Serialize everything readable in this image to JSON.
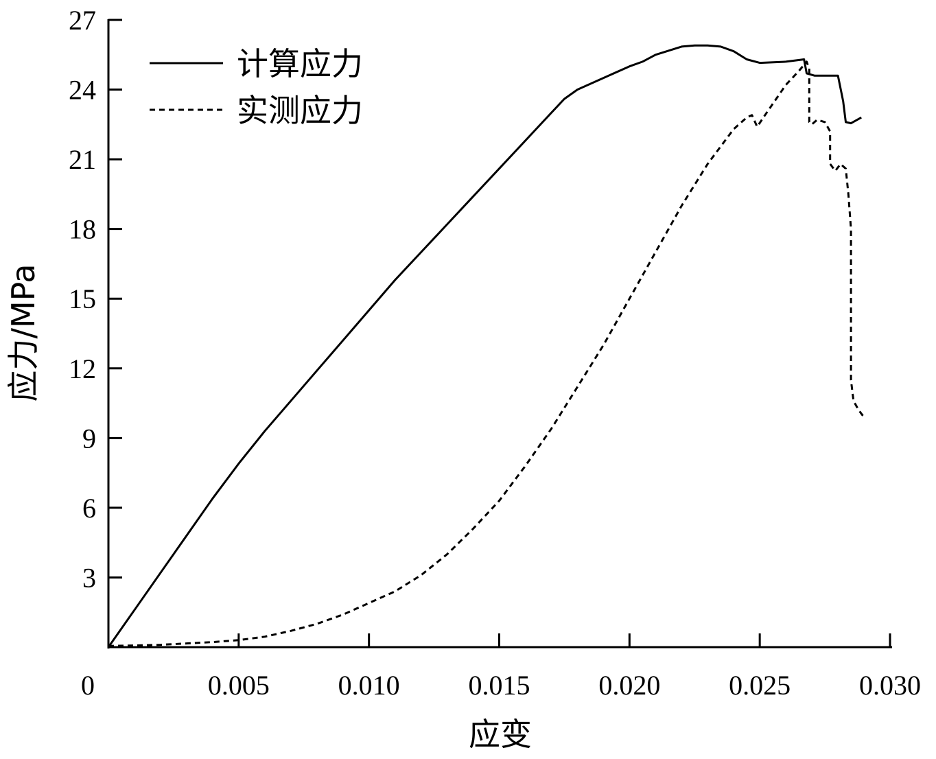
{
  "chart_data": {
    "type": "line",
    "title": "",
    "xlabel": "应变",
    "ylabel": "应力/MPa",
    "xlim": [
      0,
      0.03
    ],
    "ylim": [
      0,
      27
    ],
    "x_ticks": [
      {
        "value": 0,
        "label": "0"
      },
      {
        "value": 0.005,
        "label": "0.005"
      },
      {
        "value": 0.01,
        "label": "0.010"
      },
      {
        "value": 0.015,
        "label": "0.015"
      },
      {
        "value": 0.02,
        "label": "0.020"
      },
      {
        "value": 0.025,
        "label": "0.025"
      },
      {
        "value": 0.03,
        "label": "0.030"
      }
    ],
    "y_ticks": [
      {
        "value": 3,
        "label": "3"
      },
      {
        "value": 6,
        "label": "6"
      },
      {
        "value": 9,
        "label": "9"
      },
      {
        "value": 12,
        "label": "12"
      },
      {
        "value": 15,
        "label": "15"
      },
      {
        "value": 18,
        "label": "18"
      },
      {
        "value": 21,
        "label": "21"
      },
      {
        "value": 24,
        "label": "24"
      },
      {
        "value": 27,
        "label": "27"
      }
    ],
    "grid": false,
    "legend_position": "top-left",
    "series": [
      {
        "name": "计算应力",
        "style": "solid",
        "color": "#000000",
        "points": [
          [
            0,
            0
          ],
          [
            0.001,
            1.6
          ],
          [
            0.002,
            3.2
          ],
          [
            0.003,
            4.8
          ],
          [
            0.004,
            6.4
          ],
          [
            0.005,
            7.9
          ],
          [
            0.006,
            9.3
          ],
          [
            0.007,
            10.6
          ],
          [
            0.008,
            11.9
          ],
          [
            0.009,
            13.2
          ],
          [
            0.01,
            14.5
          ],
          [
            0.011,
            15.8
          ],
          [
            0.012,
            17.0
          ],
          [
            0.013,
            18.2
          ],
          [
            0.014,
            19.4
          ],
          [
            0.015,
            20.6
          ],
          [
            0.016,
            21.8
          ],
          [
            0.017,
            23.0
          ],
          [
            0.0175,
            23.6
          ],
          [
            0.018,
            24.0
          ],
          [
            0.019,
            24.5
          ],
          [
            0.02,
            25.0
          ],
          [
            0.0205,
            25.2
          ],
          [
            0.021,
            25.5
          ],
          [
            0.022,
            25.85
          ],
          [
            0.0225,
            25.9
          ],
          [
            0.023,
            25.9
          ],
          [
            0.0235,
            25.85
          ],
          [
            0.024,
            25.65
          ],
          [
            0.0245,
            25.3
          ],
          [
            0.025,
            25.15
          ],
          [
            0.026,
            25.2
          ],
          [
            0.0267,
            25.3
          ],
          [
            0.0268,
            24.7
          ],
          [
            0.0271,
            24.6
          ],
          [
            0.0275,
            24.6
          ],
          [
            0.0279,
            24.6
          ],
          [
            0.028,
            24.6
          ],
          [
            0.0282,
            23.5
          ],
          [
            0.0283,
            22.6
          ],
          [
            0.0285,
            22.55
          ],
          [
            0.0289,
            22.8
          ]
        ]
      },
      {
        "name": "实测应力",
        "style": "dashed",
        "color": "#000000",
        "points": [
          [
            0,
            0.05
          ],
          [
            0.001,
            0.07
          ],
          [
            0.002,
            0.1
          ],
          [
            0.003,
            0.16
          ],
          [
            0.004,
            0.22
          ],
          [
            0.005,
            0.3
          ],
          [
            0.006,
            0.45
          ],
          [
            0.007,
            0.7
          ],
          [
            0.008,
            1.0
          ],
          [
            0.009,
            1.4
          ],
          [
            0.01,
            1.9
          ],
          [
            0.011,
            2.4
          ],
          [
            0.012,
            3.1
          ],
          [
            0.013,
            4.0
          ],
          [
            0.014,
            5.1
          ],
          [
            0.015,
            6.3
          ],
          [
            0.016,
            7.8
          ],
          [
            0.017,
            9.4
          ],
          [
            0.018,
            11.2
          ],
          [
            0.019,
            13.0
          ],
          [
            0.02,
            15.0
          ],
          [
            0.021,
            17.0
          ],
          [
            0.022,
            19.0
          ],
          [
            0.023,
            20.8
          ],
          [
            0.024,
            22.3
          ],
          [
            0.0245,
            22.8
          ],
          [
            0.0247,
            22.9
          ],
          [
            0.0249,
            22.4
          ],
          [
            0.0252,
            22.9
          ],
          [
            0.026,
            24.2
          ],
          [
            0.0265,
            24.8
          ],
          [
            0.0268,
            25.2
          ],
          [
            0.0269,
            24.9
          ],
          [
            0.0269,
            22.6
          ],
          [
            0.027,
            22.5
          ],
          [
            0.0272,
            22.7
          ],
          [
            0.0275,
            22.6
          ],
          [
            0.0277,
            22.2
          ],
          [
            0.0277,
            20.8
          ],
          [
            0.0279,
            20.5
          ],
          [
            0.0281,
            20.8
          ],
          [
            0.0283,
            20.6
          ],
          [
            0.0284,
            19.5
          ],
          [
            0.0285,
            18.0
          ],
          [
            0.0285,
            11.5
          ],
          [
            0.0286,
            10.6
          ],
          [
            0.0288,
            10.2
          ],
          [
            0.029,
            9.9
          ]
        ]
      }
    ]
  }
}
